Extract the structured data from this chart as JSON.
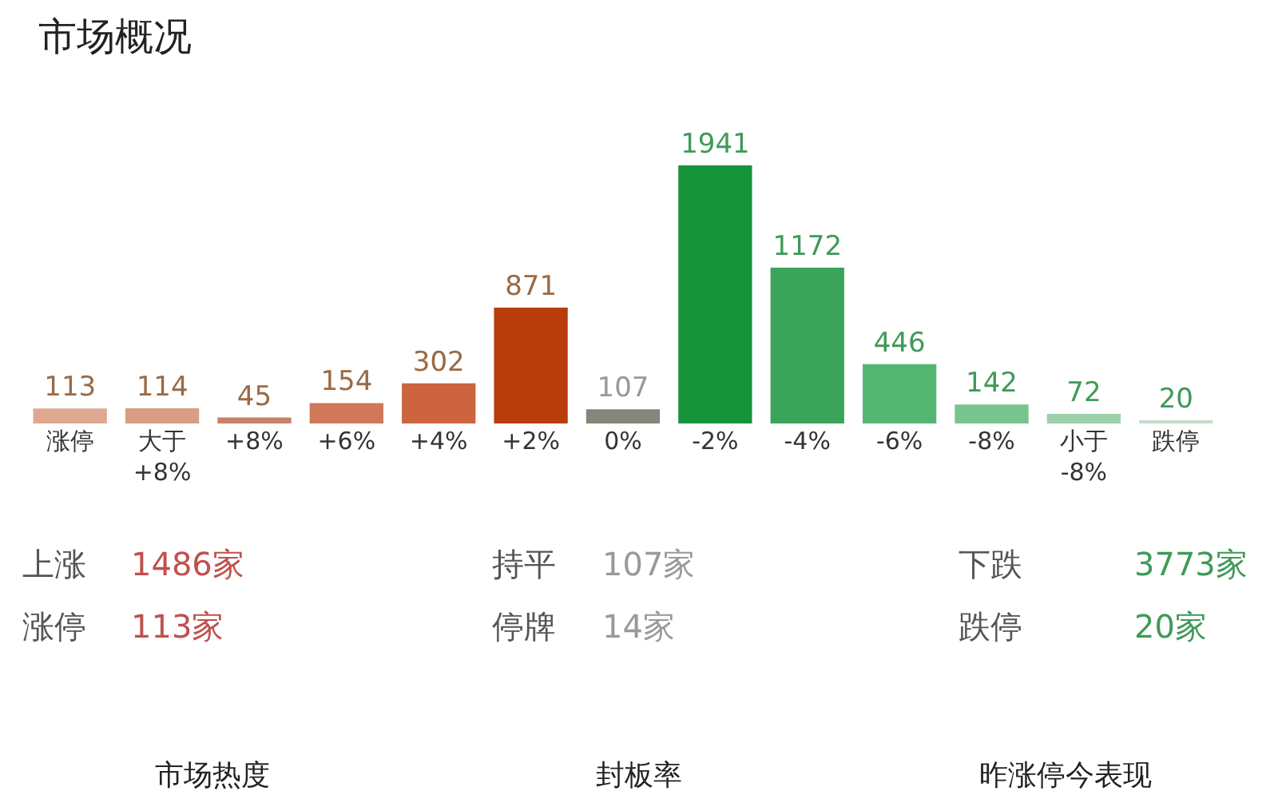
{
  "chart_data": {
    "type": "bar",
    "title": "市场概况",
    "categories": [
      "涨停",
      "大于\n+8%",
      "+8%",
      "+6%",
      "+4%",
      "+2%",
      "0%",
      "-2%",
      "-4%",
      "-6%",
      "-8%",
      "小于\n-8%",
      "跌停"
    ],
    "values": [
      113,
      114,
      45,
      154,
      302,
      871,
      107,
      1941,
      1172,
      446,
      142,
      72,
      20
    ],
    "colors": [
      "#dfa890",
      "#d99c84",
      "#c8826a",
      "#d0785a",
      "#cc6440",
      "#b83c0c",
      "#85857a",
      "#15933a",
      "#3aa55a",
      "#55b573",
      "#78c48f",
      "#9ccfaa",
      "#c4dcc8"
    ],
    "data_labels": true,
    "annotations": [
      "上涨",
      "1486家",
      "持平",
      "107家",
      "下跌",
      "3773家",
      "涨停",
      "113家",
      "停牌",
      "14家",
      "跌停",
      "20家",
      "市场热度",
      "封板率",
      "昨涨停今表现"
    ]
  }
}
